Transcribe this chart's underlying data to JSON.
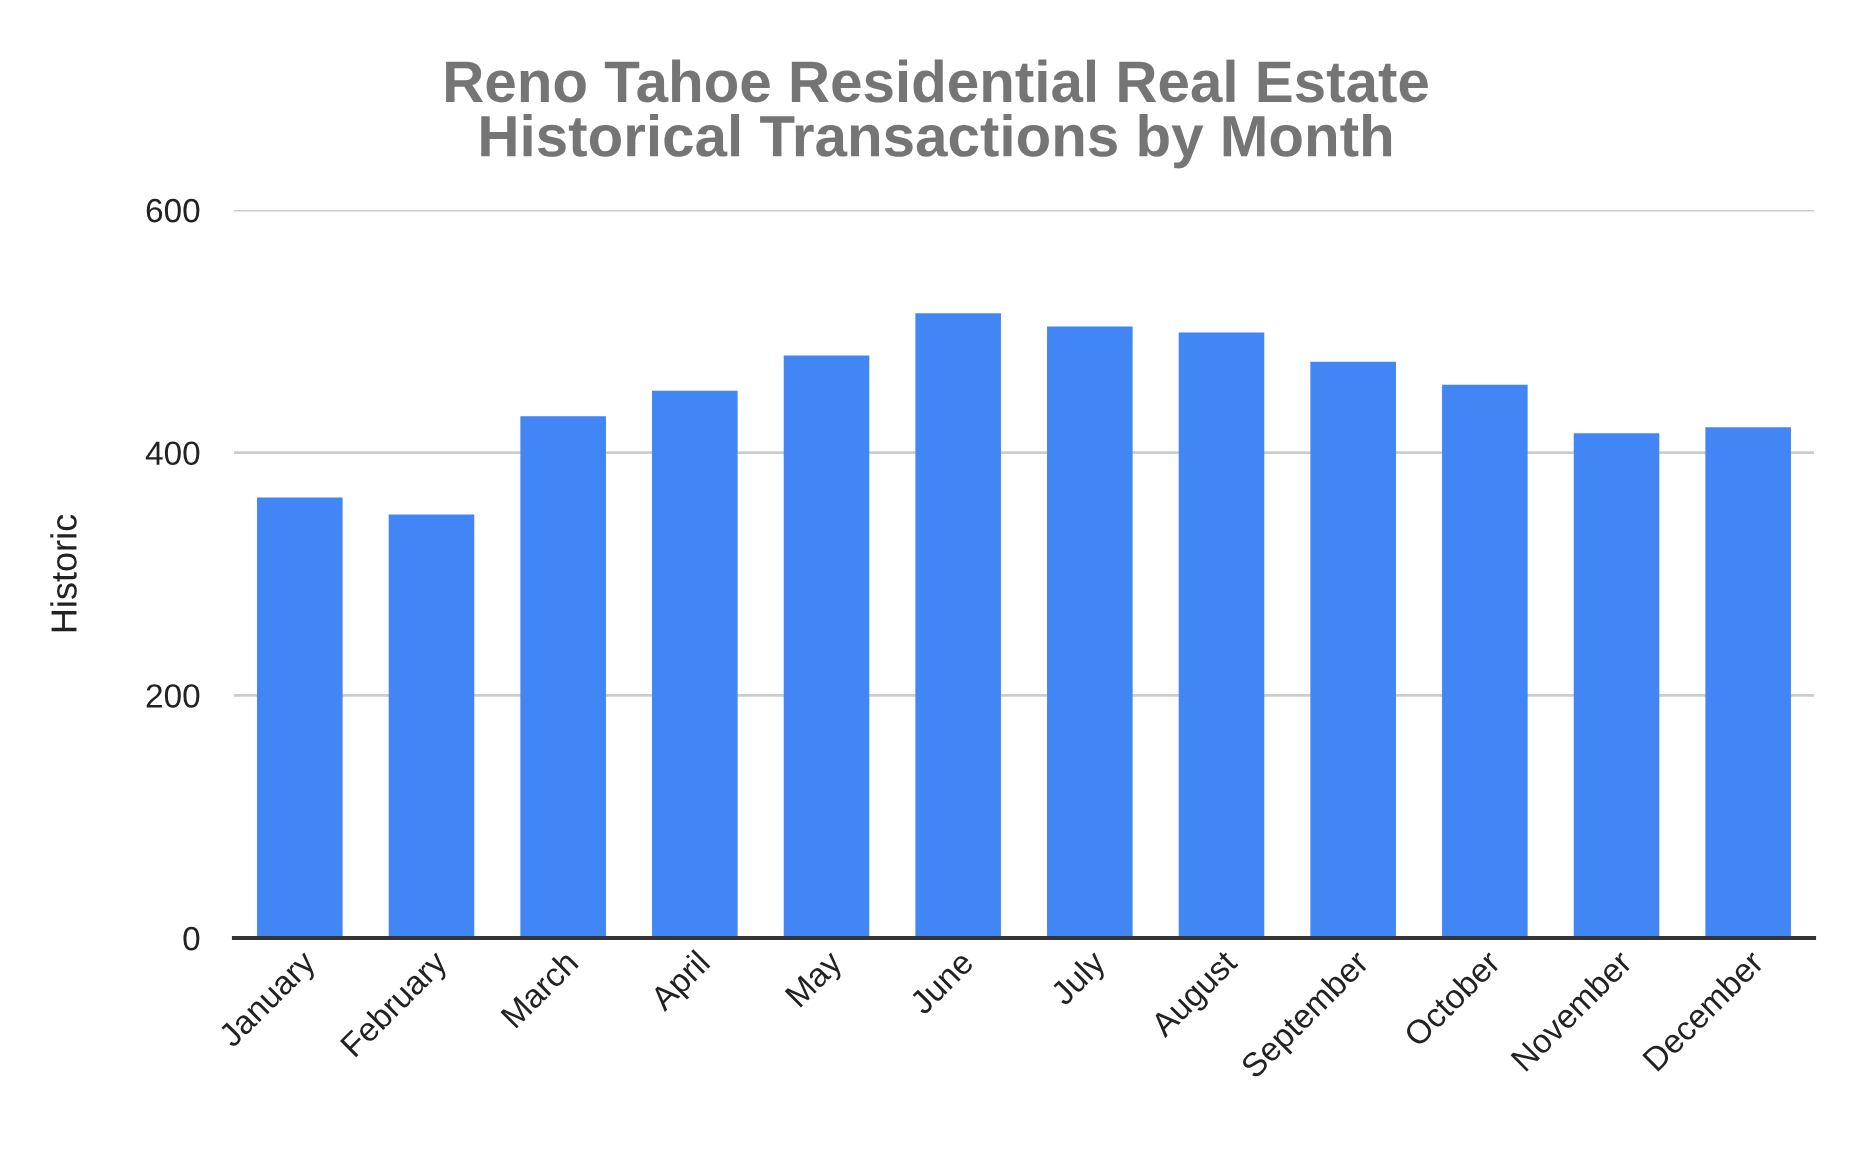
{
  "chart_data": {
    "type": "bar",
    "title": "Reno Tahoe Residential Real Estate\nHistorical Transactions by Month",
    "ylabel": "Historic",
    "categories": [
      "January",
      "February",
      "March",
      "April",
      "May",
      "June",
      "July",
      "August",
      "September",
      "October",
      "November",
      "December"
    ],
    "values": [
      363,
      349,
      430,
      451,
      480,
      515,
      504,
      499,
      475,
      456,
      416,
      421
    ],
    "color": "#4285f4",
    "ylim": [
      0,
      600
    ],
    "yticks": [
      0,
      200,
      400,
      600
    ],
    "grid": "y",
    "legend": false
  }
}
